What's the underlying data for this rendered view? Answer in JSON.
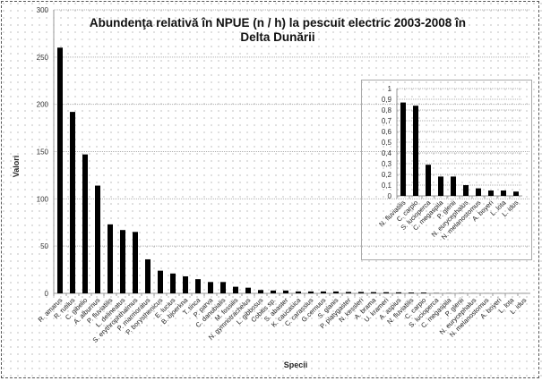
{
  "chart_data": [
    {
      "type": "bar",
      "title": "Abundenţa relativă în NPUE (n / h) la pescuit electric 2003-2008   în Delta Dunării",
      "title_line1": "Abundenţa relativă în NPUE (n / h) la pescuit electric 2003-2008   în",
      "title_line2": "Delta Dunării",
      "xlabel": "Specii",
      "ylabel": "Valori",
      "ylim": [
        0,
        300
      ],
      "yticks": [
        "0",
        "50",
        "100",
        "150",
        "200",
        "250",
        "300"
      ],
      "grid": true,
      "categories": [
        "R. amarus",
        "R. rutilus",
        "C. gibelio",
        "A. alburnus",
        "P. fluviatilis",
        "L. delineatus",
        "S. erythrophthalmus",
        "P. marmoratus",
        "P. borysthenicus",
        "E. lucius",
        "B. bjoerkna",
        "T. tinca",
        "P. parva",
        "C. danubialis",
        "M. fossilis",
        "N. gymnotrachelus",
        "L. gibbosus",
        "Cobitis sp.",
        "S. abaster",
        "K. caucasica",
        "C. carassius",
        "G.cernuus",
        "S. glanis",
        "P. platygaster",
        "N. kessleri",
        "A. brama",
        "U. krameri",
        "A. aspius",
        "N. fluviatilis",
        "C. carpio",
        "S. lucioperca",
        "C. megaspila",
        "P. glenii",
        "N. eurycephalus",
        "N. melanostomus",
        "A. boyeri",
        "L. lota",
        "L. idus"
      ],
      "values": [
        260,
        192,
        147,
        114,
        73,
        67,
        65,
        36,
        24,
        21,
        18,
        15,
        12,
        12,
        7,
        6,
        3.5,
        3,
        3,
        2,
        2,
        2,
        2,
        1.5,
        1.5,
        1.3,
        1.2,
        1.1,
        0.87,
        0.84,
        0.29,
        0.18,
        0.18,
        0.1,
        0.07,
        0.05,
        0.05,
        0.04
      ],
      "bar_color": "#000000"
    },
    {
      "type": "bar",
      "title": "",
      "ylim": [
        0,
        1
      ],
      "yticks": [
        "0",
        "0,1",
        "0,2",
        "0,3",
        "0,4",
        "0,5",
        "0,6",
        "0,7",
        "0,8",
        "0,9",
        "1"
      ],
      "grid": true,
      "categories": [
        "N. fluviatilis",
        "C. carpio",
        "S. lucioperca",
        "C. megaspila",
        "P. glenii",
        "N. eurycephalus",
        "N. melanostomus",
        "A. boyeri",
        "L. lota",
        "L. idus"
      ],
      "values": [
        0.87,
        0.84,
        0.29,
        0.18,
        0.18,
        0.1,
        0.07,
        0.05,
        0.05,
        0.04
      ],
      "bar_color": "#000000"
    }
  ]
}
